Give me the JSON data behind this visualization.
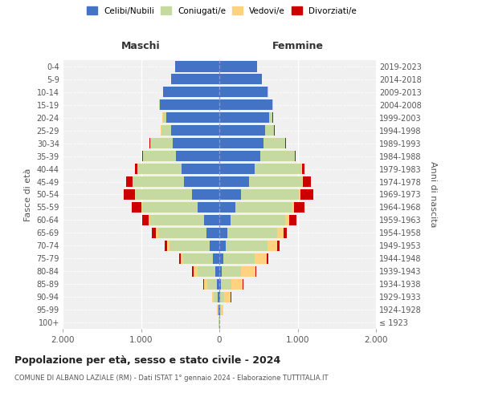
{
  "age_groups": [
    "100+",
    "95-99",
    "90-94",
    "85-89",
    "80-84",
    "75-79",
    "70-74",
    "65-69",
    "60-64",
    "55-59",
    "50-54",
    "45-49",
    "40-44",
    "35-39",
    "30-34",
    "25-29",
    "20-24",
    "15-19",
    "10-14",
    "5-9",
    "0-4"
  ],
  "birth_years": [
    "≤ 1923",
    "1924-1928",
    "1929-1933",
    "1934-1938",
    "1939-1943",
    "1944-1948",
    "1949-1953",
    "1954-1958",
    "1959-1963",
    "1964-1968",
    "1969-1973",
    "1974-1978",
    "1979-1983",
    "1984-1988",
    "1989-1993",
    "1994-1998",
    "1999-2003",
    "2004-2008",
    "2009-2013",
    "2014-2018",
    "2019-2023"
  ],
  "males": {
    "celibi": [
      5,
      10,
      20,
      30,
      50,
      80,
      120,
      160,
      200,
      280,
      350,
      450,
      480,
      550,
      600,
      620,
      680,
      760,
      720,
      620,
      560
    ],
    "coniugati": [
      2,
      15,
      50,
      120,
      230,
      380,
      520,
      620,
      680,
      700,
      720,
      650,
      560,
      420,
      280,
      120,
      40,
      10,
      2,
      0,
      0
    ],
    "vedovi": [
      0,
      5,
      20,
      50,
      50,
      30,
      30,
      30,
      20,
      15,
      10,
      5,
      5,
      5,
      5,
      5,
      5,
      0,
      0,
      0,
      0
    ],
    "divorziati": [
      0,
      0,
      5,
      10,
      15,
      20,
      30,
      50,
      80,
      120,
      140,
      80,
      30,
      10,
      5,
      5,
      5,
      0,
      0,
      0,
      0
    ]
  },
  "females": {
    "nubili": [
      5,
      10,
      15,
      20,
      30,
      50,
      80,
      100,
      140,
      200,
      280,
      380,
      450,
      520,
      560,
      580,
      640,
      680,
      620,
      540,
      480
    ],
    "coniugate": [
      2,
      15,
      50,
      130,
      250,
      400,
      540,
      640,
      700,
      720,
      740,
      680,
      600,
      440,
      280,
      120,
      40,
      10,
      2,
      0,
      0
    ],
    "vedove": [
      2,
      30,
      80,
      150,
      180,
      160,
      120,
      80,
      50,
      30,
      20,
      10,
      5,
      5,
      2,
      2,
      2,
      0,
      0,
      0,
      0
    ],
    "divorziate": [
      0,
      0,
      5,
      10,
      15,
      20,
      25,
      40,
      90,
      140,
      160,
      100,
      30,
      10,
      5,
      5,
      5,
      0,
      0,
      0,
      0
    ]
  },
  "colors": {
    "celibi": "#4472c4",
    "coniugati": "#c5d9a0",
    "vedovi": "#ffd280",
    "divorziati": "#cc0000"
  },
  "xlim": 2000,
  "title": "Popolazione per età, sesso e stato civile - 2024",
  "subtitle": "COMUNE DI ALBANO LAZIALE (RM) - Dati ISTAT 1° gennaio 2024 - Elaborazione TUTTITALIA.IT",
  "ylabel_left": "Fasce di età",
  "ylabel_right": "Anni di nascita",
  "xlabel_maschi": "Maschi",
  "xlabel_femmine": "Femmine",
  "legend_labels": [
    "Celibi/Nubili",
    "Coniugati/e",
    "Vedovi/e",
    "Divorziati/e"
  ],
  "bg_color": "#f0f0f0"
}
